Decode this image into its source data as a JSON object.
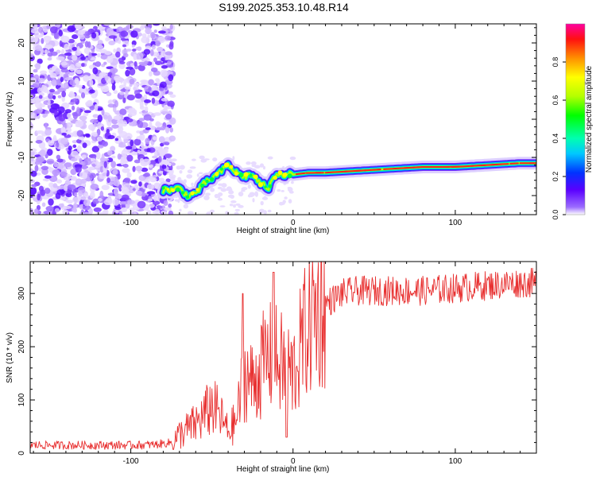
{
  "title": "S199.2025.353.10.48.R14",
  "chart_data": [
    {
      "type": "heatmap",
      "title": "S199.2025.353.10.48.R14",
      "xlabel": "Height of straight line (km)",
      "ylabel": "Frequency (Hz)",
      "xlim": [
        -162,
        150
      ],
      "ylim": [
        -25,
        25
      ],
      "xticks": [
        -100,
        0,
        100
      ],
      "yticks": [
        -20,
        -10,
        0,
        10,
        20
      ],
      "colorbar": {
        "label": "Normalized spectral amplitude",
        "range": [
          0.0,
          1.0
        ],
        "ticks": [
          0.0,
          0.2,
          0.4,
          0.6,
          0.8
        ]
      },
      "ridge": {
        "x": [
          -80,
          -75,
          -70,
          -65,
          -60,
          -55,
          -50,
          -45,
          -40,
          -35,
          -30,
          -25,
          -20,
          -15,
          -10,
          -5,
          0,
          10,
          20,
          40,
          60,
          80,
          100,
          120,
          140,
          150
        ],
        "frequency": [
          -18.5,
          -18.5,
          -18,
          -20,
          -19.5,
          -17,
          -15.5,
          -14,
          -12,
          -14,
          -15,
          -14.5,
          -17,
          -18,
          -14,
          -14.5,
          -14.5,
          -14,
          -14,
          -13.5,
          -13,
          -12.5,
          -12.5,
          -12,
          -11.5,
          -11.5
        ]
      },
      "noise_region_x": [
        -162,
        -80
      ]
    },
    {
      "type": "line",
      "xlabel": "Height of straight line (km)",
      "ylabel": "SNR (10 * v/v)",
      "xlim": [
        -162,
        150
      ],
      "ylim": [
        0,
        360
      ],
      "xticks": [
        -100,
        0,
        100
      ],
      "yticks": [
        0,
        100,
        200,
        300
      ],
      "series": [
        {
          "name": "SNR",
          "color": "#e83030",
          "x": [
            -162,
            -140,
            -120,
            -100,
            -85,
            -75,
            -70,
            -65,
            -60,
            -55,
            -50,
            -45,
            -40,
            -35,
            -30,
            -25,
            -20,
            -15,
            -10,
            -5,
            0,
            5,
            10,
            15,
            20,
            25,
            30,
            40,
            60,
            80,
            100,
            120,
            140,
            150
          ],
          "values": [
            15,
            15,
            15,
            15,
            16,
            20,
            35,
            45,
            55,
            70,
            90,
            70,
            40,
            60,
            150,
            130,
            160,
            180,
            175,
            160,
            150,
            200,
            250,
            270,
            280,
            290,
            300,
            305,
            305,
            305,
            310,
            315,
            320,
            320
          ]
        }
      ],
      "spikes": [
        {
          "x": -31,
          "value": 300
        },
        {
          "x": -12,
          "value": 340
        },
        {
          "x": -4,
          "value": 30
        }
      ]
    }
  ]
}
